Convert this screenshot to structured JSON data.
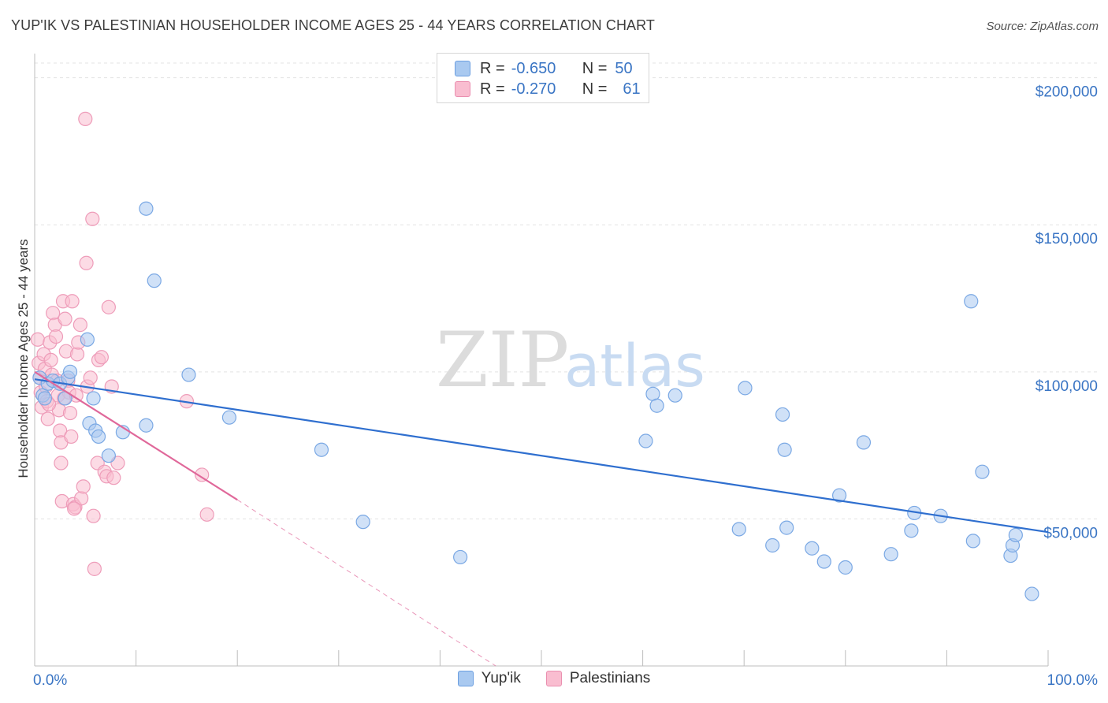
{
  "header": {
    "title": "YUP'IK VS PALESTINIAN HOUSEHOLDER INCOME AGES 25 - 44 YEARS CORRELATION CHART",
    "source": "Source: ZipAtlas.com"
  },
  "legend": {
    "r_label": "R =",
    "n_label": "N =",
    "rows": [
      {
        "r": "-0.650",
        "n": "50",
        "color": "#a9c9f0",
        "border": "#6b9ee0"
      },
      {
        "r": "-0.270",
        "n": "61",
        "color": "#f9bdd0",
        "border": "#ea8fb0"
      }
    ]
  },
  "colors": {
    "blue_fill": "#a9c9f0",
    "blue_stroke": "#7aa8e4",
    "blue_line": "#2f6fcf",
    "pink_fill": "#f9bdd0",
    "pink_stroke": "#ee9cb9",
    "pink_line": "#e0689a",
    "grid": "#e3e3e3",
    "axis": "#bdbdbd",
    "tick_text": "#3a75c4"
  },
  "watermark": {
    "zip": "ZIP",
    "atlas": "atlas"
  },
  "chart_data": {
    "type": "scatter",
    "title": "YUP'IK VS PALESTINIAN HOUSEHOLDER INCOME AGES 25 - 44 YEARS CORRELATION CHART",
    "xlabel": "",
    "ylabel": "Householder Income Ages 25 - 44 years",
    "xlim": [
      0,
      100
    ],
    "ylim": [
      0,
      205000
    ],
    "x_tick_labels": [
      "0.0%",
      "100.0%"
    ],
    "y_ticks": [
      50000,
      100000,
      150000,
      200000
    ],
    "y_tick_labels": [
      "$50,000",
      "$100,000",
      "$150,000",
      "$200,000"
    ],
    "grid": true,
    "legend_position": "top-center",
    "series": [
      {
        "name": "Yup'ik",
        "r": -0.65,
        "n": 50,
        "trend": [
          [
            0,
            97500
          ],
          [
            100,
            45500
          ]
        ],
        "points": [
          [
            0.5,
            98000
          ],
          [
            0.8,
            92000
          ],
          [
            1.0,
            91000
          ],
          [
            1.3,
            96000
          ],
          [
            1.8,
            97000
          ],
          [
            2.5,
            96000
          ],
          [
            3.0,
            91000
          ],
          [
            3.3,
            98000
          ],
          [
            3.5,
            100000
          ],
          [
            5.2,
            111000
          ],
          [
            5.4,
            82500
          ],
          [
            5.8,
            91000
          ],
          [
            6.0,
            80000
          ],
          [
            6.3,
            78000
          ],
          [
            7.3,
            71500
          ],
          [
            8.7,
            79500
          ],
          [
            11.0,
            155500
          ],
          [
            11.0,
            81800
          ],
          [
            11.8,
            131000
          ],
          [
            15.2,
            99000
          ],
          [
            19.2,
            84500
          ],
          [
            28.3,
            73500
          ],
          [
            32.4,
            49000
          ],
          [
            42.0,
            37000
          ],
          [
            60.3,
            76500
          ],
          [
            61.0,
            92500
          ],
          [
            61.4,
            88500
          ],
          [
            63.2,
            92000
          ],
          [
            69.5,
            46500
          ],
          [
            70.1,
            94500
          ],
          [
            72.8,
            41000
          ],
          [
            73.8,
            85500
          ],
          [
            74.0,
            73500
          ],
          [
            74.2,
            47000
          ],
          [
            76.7,
            40000
          ],
          [
            77.9,
            35500
          ],
          [
            79.4,
            58000
          ],
          [
            80.0,
            33500
          ],
          [
            81.8,
            76000
          ],
          [
            84.5,
            38000
          ],
          [
            86.5,
            46000
          ],
          [
            86.8,
            52000
          ],
          [
            89.4,
            51000
          ],
          [
            92.4,
            124000
          ],
          [
            92.6,
            42500
          ],
          [
            93.5,
            66000
          ],
          [
            96.3,
            37500
          ],
          [
            96.5,
            41000
          ],
          [
            96.8,
            44500
          ],
          [
            98.4,
            24500
          ]
        ]
      },
      {
        "name": "Palestinians",
        "r": -0.27,
        "n": 61,
        "trend": [
          [
            0,
            100000
          ],
          [
            20,
            56500
          ]
        ],
        "trend_ext": [
          [
            20,
            56500
          ],
          [
            45.5,
            0
          ]
        ],
        "points": [
          [
            0.3,
            111000
          ],
          [
            0.4,
            103000
          ],
          [
            0.5,
            98000
          ],
          [
            0.6,
            93000
          ],
          [
            0.7,
            88000
          ],
          [
            0.9,
            106000
          ],
          [
            1.0,
            101000
          ],
          [
            1.1,
            95000
          ],
          [
            1.2,
            90000
          ],
          [
            1.3,
            84000
          ],
          [
            1.5,
            110000
          ],
          [
            1.6,
            104000
          ],
          [
            1.7,
            99000
          ],
          [
            1.8,
            120000
          ],
          [
            2.0,
            116000
          ],
          [
            2.1,
            112000
          ],
          [
            2.2,
            97000
          ],
          [
            2.3,
            92000
          ],
          [
            2.4,
            87000
          ],
          [
            2.5,
            80000
          ],
          [
            2.6,
            76000
          ],
          [
            2.6,
            69000
          ],
          [
            2.7,
            56000
          ],
          [
            2.8,
            124000
          ],
          [
            3.0,
            118000
          ],
          [
            3.1,
            107000
          ],
          [
            3.3,
            97000
          ],
          [
            3.4,
            93000
          ],
          [
            3.5,
            86000
          ],
          [
            3.6,
            78000
          ],
          [
            3.7,
            124000
          ],
          [
            3.8,
            55000
          ],
          [
            4.0,
            54000
          ],
          [
            4.2,
            106000
          ],
          [
            4.3,
            110000
          ],
          [
            4.5,
            116000
          ],
          [
            4.6,
            57000
          ],
          [
            4.8,
            61000
          ],
          [
            5.0,
            186000
          ],
          [
            5.1,
            137000
          ],
          [
            5.2,
            95000
          ],
          [
            5.5,
            98000
          ],
          [
            5.7,
            152000
          ],
          [
            5.8,
            51000
          ],
          [
            5.9,
            33000
          ],
          [
            6.2,
            69000
          ],
          [
            6.3,
            104000
          ],
          [
            6.6,
            105000
          ],
          [
            6.9,
            66000
          ],
          [
            7.1,
            64500
          ],
          [
            7.3,
            122000
          ],
          [
            7.6,
            95000
          ],
          [
            7.8,
            64000
          ],
          [
            8.2,
            69000
          ],
          [
            1.4,
            89000
          ],
          [
            2.9,
            91000
          ],
          [
            4.1,
            92000
          ],
          [
            3.9,
            53500
          ],
          [
            15.0,
            90000
          ],
          [
            16.5,
            65000
          ],
          [
            17.0,
            51500
          ]
        ]
      }
    ]
  },
  "bottom_legend": [
    "Yup'ik",
    "Palestinians"
  ]
}
